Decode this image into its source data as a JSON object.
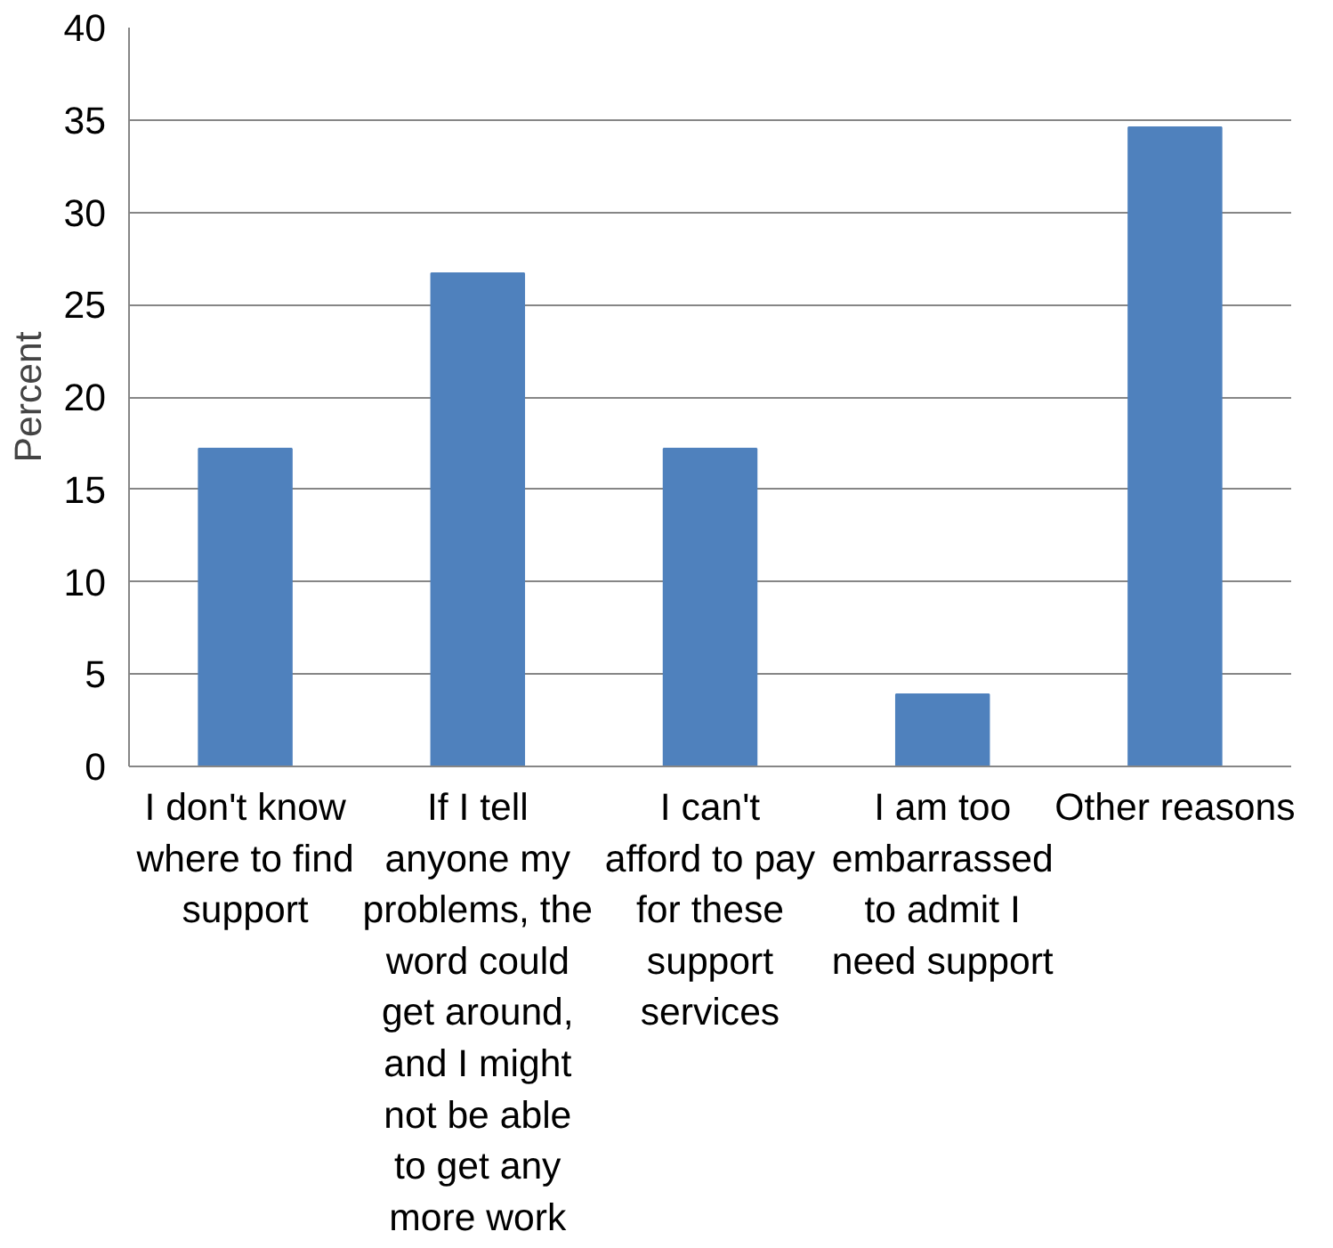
{
  "chart_data": {
    "type": "bar",
    "ylabel": "Percent",
    "categories": [
      "I don't know where to find support",
      "If I tell anyone my problems, the word could get around, and I might not be able to get any more work",
      "I can't afford to pay for these support services",
      "I am too embarrassed to admit I need support",
      "Other reasons"
    ],
    "values": [
      17.2,
      26.7,
      17.2,
      3.9,
      34.6
    ],
    "color": "#4f81bd",
    "ylim": [
      0,
      40
    ],
    "yticks": [
      0,
      5,
      10,
      15,
      20,
      25,
      30,
      35,
      40
    ],
    "grid": "y"
  }
}
